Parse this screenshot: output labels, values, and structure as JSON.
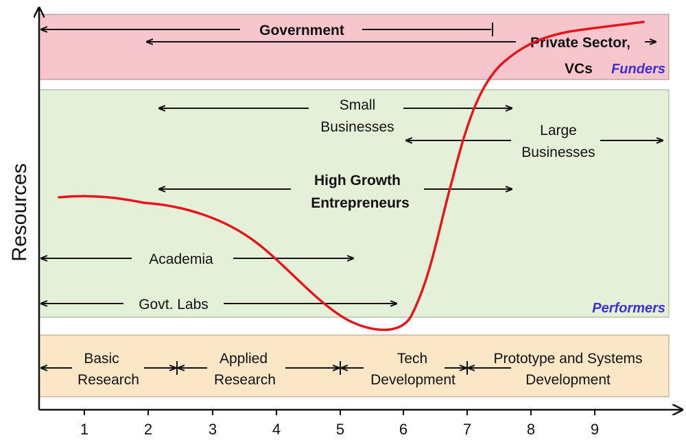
{
  "axis": {
    "ylabel": "Resources",
    "xticks": [
      "1",
      "2",
      "3",
      "4",
      "5",
      "6",
      "7",
      "8",
      "9"
    ]
  },
  "bands": {
    "funders": {
      "title": "Funders",
      "government": "Government",
      "private_line1": "Private Sector,",
      "private_line2": "VCs"
    },
    "performers": {
      "title": "Performers",
      "small_line1": "Small",
      "small_line2": "Businesses",
      "large_line1": "Large",
      "large_line2": "Businesses",
      "hge_line1": "High Growth",
      "hge_line2": "Entrepreneurs",
      "academia": "Academia",
      "labs": "Govt. Labs"
    },
    "stages": {
      "basic_line1": "Basic",
      "basic_line2": "Research",
      "applied_line1": "Applied",
      "applied_line2": "Research",
      "tech_line1": "Tech",
      "tech_line2": "Development",
      "proto_line1": "Prototype and Systems",
      "proto_line2": "Development"
    }
  },
  "colors": {
    "funders_fill": "#f6c6cc",
    "performers_fill": "#e4f1d8",
    "stages_fill": "#fbe6c6",
    "curve": "#e8141c",
    "band_title": "#3b2fd6"
  }
}
